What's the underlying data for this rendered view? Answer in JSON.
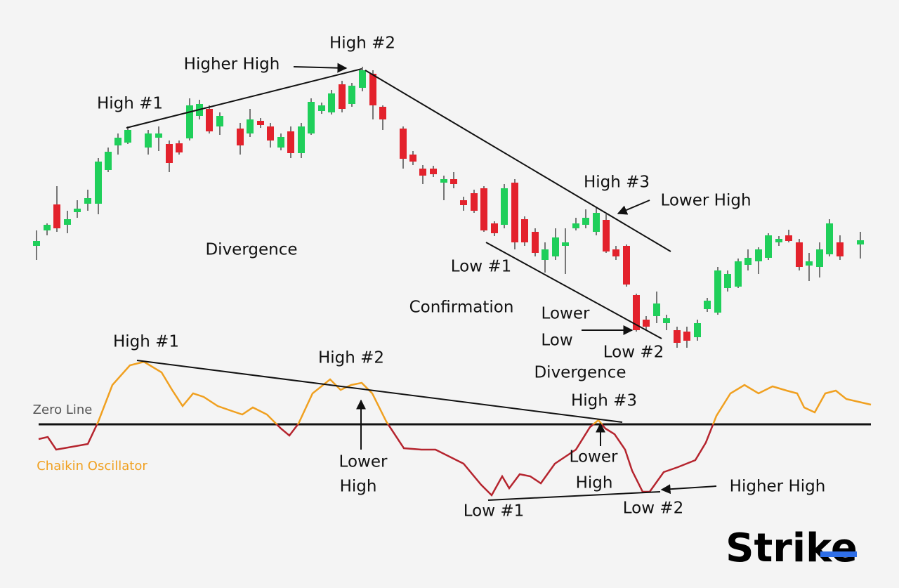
{
  "price_panel": {
    "labels": [
      "High #2",
      "Higher High",
      "High #1",
      "High #3",
      "Lower High",
      "Divergence",
      "Low #1",
      "Confirmation",
      "Low #2",
      "Divergence"
    ],
    "lower_low": [
      "Lower",
      "Low"
    ]
  },
  "oscillator_panel": {
    "labels": [
      "High #1",
      "High #2",
      "Zero Line",
      "Chaikin Oscillator",
      "High #3",
      "Low #1",
      "Low #2",
      "Higher High"
    ],
    "lower_high_1": [
      "Lower",
      "High"
    ],
    "lower_high_2": [
      "Lower",
      "High"
    ]
  },
  "logo": "Strike"
}
